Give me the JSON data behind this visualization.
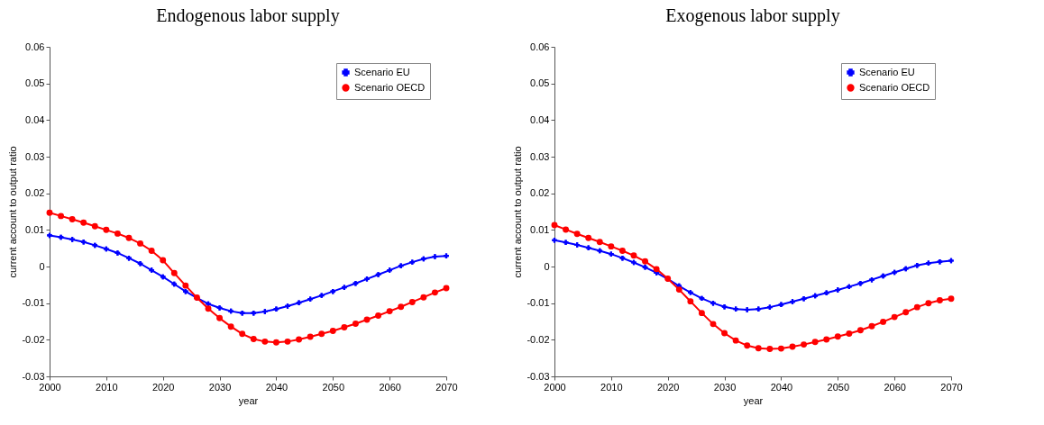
{
  "chart_data": [
    {
      "type": "line",
      "title": "Endogenous labor supply",
      "xlabel": "year",
      "ylabel": "current account to output ratio",
      "x": [
        2000,
        2002,
        2004,
        2006,
        2008,
        2010,
        2012,
        2014,
        2016,
        2018,
        2020,
        2022,
        2024,
        2026,
        2028,
        2030,
        2032,
        2034,
        2036,
        2038,
        2040,
        2042,
        2044,
        2046,
        2048,
        2050,
        2052,
        2054,
        2056,
        2058,
        2060,
        2062,
        2064,
        2066,
        2068,
        2070
      ],
      "series": [
        {
          "name": "Scenario EU",
          "color": "#0000ff",
          "marker": "cross",
          "values": [
            0.0085,
            0.008,
            0.0074,
            0.0067,
            0.0058,
            0.0048,
            0.0037,
            0.0023,
            0.0008,
            -0.001,
            -0.0028,
            -0.0048,
            -0.0068,
            -0.0086,
            -0.0102,
            -0.0113,
            -0.0122,
            -0.0127,
            -0.0127,
            -0.0123,
            -0.0116,
            -0.0108,
            -0.0099,
            -0.0089,
            -0.0079,
            -0.0068,
            -0.0057,
            -0.0046,
            -0.0034,
            -0.0022,
            -0.001,
            0.0002,
            0.0012,
            0.0021,
            0.0027,
            0.0029
          ]
        },
        {
          "name": "Scenario OECD",
          "color": "#ff0000",
          "marker": "circle",
          "values": [
            0.0147,
            0.0138,
            0.0129,
            0.012,
            0.011,
            0.01,
            0.009,
            0.0078,
            0.0063,
            0.0043,
            0.0017,
            -0.0018,
            -0.0052,
            -0.0085,
            -0.0115,
            -0.0141,
            -0.0164,
            -0.0184,
            -0.0198,
            -0.0205,
            -0.0207,
            -0.0205,
            -0.0199,
            -0.0192,
            -0.0184,
            -0.0176,
            -0.0166,
            -0.0156,
            -0.0145,
            -0.0134,
            -0.0122,
            -0.011,
            -0.0097,
            -0.0084,
            -0.0071,
            -0.0059
          ]
        }
      ],
      "xlim": [
        2000,
        2070
      ],
      "xticks": [
        2000,
        2010,
        2020,
        2030,
        2040,
        2050,
        2060,
        2070
      ],
      "ylim": [
        -0.03,
        0.06
      ],
      "yticks": [
        -0.03,
        -0.02,
        -0.01,
        0,
        0.01,
        0.02,
        0.03,
        0.04,
        0.05,
        0.06
      ],
      "legend": "top right"
    },
    {
      "type": "line",
      "title": "Exogenous labor supply",
      "xlabel": "year",
      "ylabel": "current account to output ratio",
      "x": [
        2000,
        2002,
        2004,
        2006,
        2008,
        2010,
        2012,
        2014,
        2016,
        2018,
        2020,
        2022,
        2024,
        2026,
        2028,
        2030,
        2032,
        2034,
        2036,
        2038,
        2040,
        2042,
        2044,
        2046,
        2048,
        2050,
        2052,
        2054,
        2056,
        2058,
        2060,
        2062,
        2064,
        2066,
        2068,
        2070
      ],
      "series": [
        {
          "name": "Scenario EU",
          "color": "#0000ff",
          "marker": "cross",
          "values": [
            0.0072,
            0.0066,
            0.0059,
            0.0051,
            0.0043,
            0.0034,
            0.0023,
            0.0011,
            -0.0002,
            -0.0017,
            -0.0034,
            -0.0053,
            -0.0071,
            -0.0087,
            -0.01,
            -0.011,
            -0.0116,
            -0.0118,
            -0.0116,
            -0.0111,
            -0.0104,
            -0.0096,
            -0.0088,
            -0.008,
            -0.0072,
            -0.0064,
            -0.0055,
            -0.0046,
            -0.0036,
            -0.0026,
            -0.0016,
            -0.0006,
            0.0003,
            0.0009,
            0.0013,
            0.0016
          ]
        },
        {
          "name": "Scenario OECD",
          "color": "#ff0000",
          "marker": "circle",
          "values": [
            0.0113,
            0.0101,
            0.0089,
            0.0078,
            0.0067,
            0.0055,
            0.0043,
            0.003,
            0.0014,
            -0.0007,
            -0.0033,
            -0.0063,
            -0.0095,
            -0.0127,
            -0.0157,
            -0.0182,
            -0.0202,
            -0.0216,
            -0.0223,
            -0.0225,
            -0.0224,
            -0.0219,
            -0.0213,
            -0.0206,
            -0.0199,
            -0.0191,
            -0.0183,
            -0.0174,
            -0.0163,
            -0.0151,
            -0.0138,
            -0.0125,
            -0.0111,
            -0.01,
            -0.0092,
            -0.0088
          ]
        }
      ],
      "xlim": [
        2000,
        2070
      ],
      "xticks": [
        2000,
        2010,
        2020,
        2030,
        2040,
        2050,
        2060,
        2070
      ],
      "ylim": [
        -0.03,
        0.06
      ],
      "yticks": [
        -0.03,
        -0.02,
        -0.01,
        0,
        0.01,
        0.02,
        0.03,
        0.04,
        0.05,
        0.06
      ],
      "legend": "top right"
    }
  ]
}
